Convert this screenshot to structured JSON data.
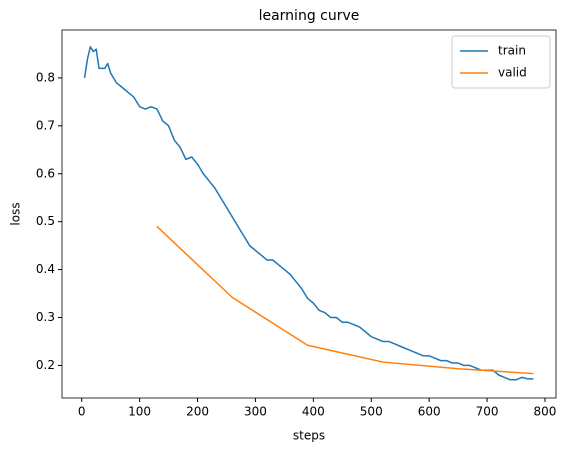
{
  "chart_data": {
    "type": "line",
    "title": "learning curve",
    "xlabel": "steps",
    "ylabel": "loss",
    "xlim": [
      -34,
      819
    ],
    "ylim": [
      0.132,
      0.9
    ],
    "xticks": [
      0,
      100,
      200,
      300,
      400,
      500,
      600,
      700,
      800
    ],
    "yticks": [
      0.2,
      0.3,
      0.4,
      0.5,
      0.6,
      0.7,
      0.8
    ],
    "legend": "upper right",
    "series": [
      {
        "name": "train",
        "color": "#1f77b4",
        "x": [
          5,
          10,
          15,
          20,
          25,
          30,
          40,
          45,
          50,
          60,
          70,
          80,
          90,
          100,
          110,
          120,
          130,
          140,
          150,
          160,
          170,
          180,
          190,
          200,
          210,
          220,
          230,
          240,
          250,
          260,
          270,
          280,
          290,
          300,
          310,
          320,
          330,
          340,
          350,
          360,
          370,
          380,
          390,
          400,
          410,
          420,
          430,
          440,
          450,
          460,
          470,
          480,
          490,
          500,
          510,
          520,
          530,
          540,
          550,
          560,
          570,
          580,
          590,
          600,
          610,
          620,
          630,
          640,
          650,
          660,
          670,
          680,
          690,
          700,
          710,
          720,
          730,
          740,
          750,
          760,
          770,
          780
        ],
        "values": [
          0.8,
          0.84,
          0.865,
          0.855,
          0.86,
          0.82,
          0.82,
          0.83,
          0.81,
          0.79,
          0.78,
          0.77,
          0.76,
          0.74,
          0.735,
          0.74,
          0.735,
          0.71,
          0.7,
          0.67,
          0.655,
          0.63,
          0.635,
          0.62,
          0.6,
          0.585,
          0.57,
          0.55,
          0.53,
          0.51,
          0.49,
          0.47,
          0.45,
          0.44,
          0.43,
          0.42,
          0.42,
          0.41,
          0.4,
          0.39,
          0.375,
          0.36,
          0.34,
          0.33,
          0.315,
          0.31,
          0.3,
          0.3,
          0.29,
          0.29,
          0.285,
          0.28,
          0.27,
          0.26,
          0.255,
          0.25,
          0.25,
          0.245,
          0.24,
          0.235,
          0.23,
          0.225,
          0.22,
          0.22,
          0.215,
          0.21,
          0.21,
          0.205,
          0.205,
          0.2,
          0.2,
          0.195,
          0.19,
          0.19,
          0.19,
          0.18,
          0.175,
          0.17,
          0.17,
          0.175,
          0.172,
          0.172
        ]
      },
      {
        "name": "valid",
        "color": "#ff7f0e",
        "x": [
          130,
          260,
          390,
          520,
          650,
          780
        ],
        "values": [
          0.49,
          0.342,
          0.242,
          0.207,
          0.193,
          0.183
        ]
      }
    ]
  }
}
